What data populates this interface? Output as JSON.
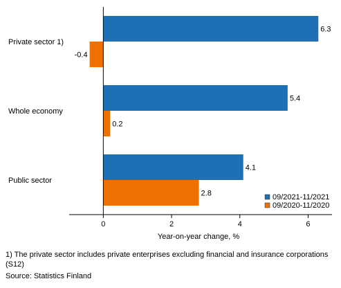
{
  "chart_data": {
    "type": "bar",
    "orientation": "horizontal",
    "categories": [
      "Private sector 1)",
      "Whole economy",
      "Public sector"
    ],
    "series": [
      {
        "name": "09/2021-11/2021",
        "values": [
          6.3,
          5.4,
          4.1
        ],
        "color": "#1f6fb4"
      },
      {
        "name": "09/2020-11/2020",
        "values": [
          -0.4,
          0.2,
          2.8
        ],
        "color": "#ee7000"
      }
    ],
    "xlabel": "Year-on-year change, %",
    "ylabel": "",
    "xlim": [
      -1,
      6.7
    ],
    "xticks": [
      0,
      2,
      4,
      6
    ],
    "grid": false,
    "legend": "bottom-right"
  },
  "footnotes": {
    "note1": "1) The private sector includes private enterprises excluding financial and insurance corporations (S12)",
    "source": "Source: Statistics Finland"
  }
}
